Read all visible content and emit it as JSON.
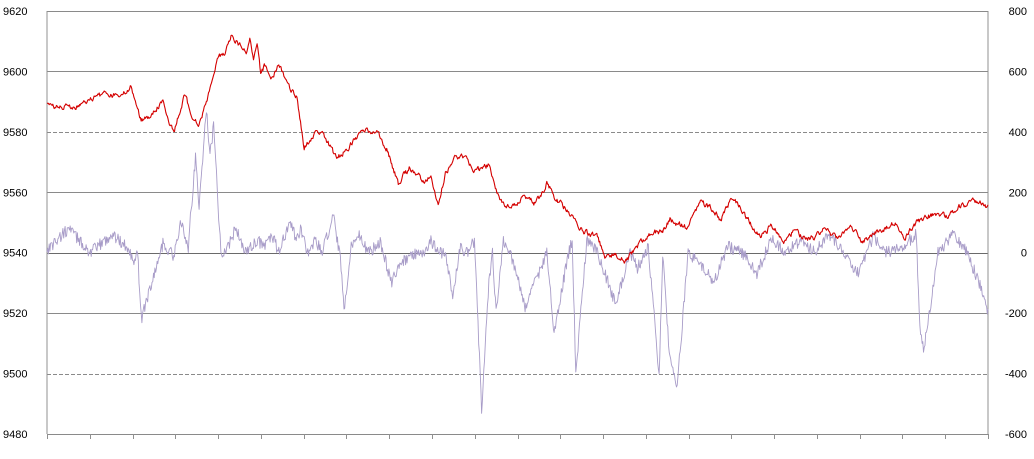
{
  "chart_data": {
    "type": "line",
    "title": "",
    "xlabel": "",
    "ylabel": "",
    "y_left": {
      "ticks": [
        9620,
        9600,
        9580,
        9560,
        9540,
        9520,
        9500,
        9480
      ],
      "ylim": [
        9480,
        9620
      ]
    },
    "y_right": {
      "ticks": [
        800,
        600,
        400,
        200,
        0,
        -200,
        -400,
        -600
      ],
      "ylim": [
        -600,
        800
      ]
    },
    "grid": true,
    "legend": "none",
    "n_points": 1300,
    "series": [
      {
        "axis": "left",
        "color": "#d40000",
        "x": [
          0,
          40,
          80,
          100,
          115,
          130,
          140,
          160,
          175,
          190,
          200,
          210,
          220,
          235,
          245,
          255,
          265,
          275,
          280,
          285,
          290,
          295,
          300,
          310,
          320,
          330,
          345,
          355,
          375,
          385,
          400,
          420,
          440,
          455,
          470,
          485,
          500,
          520,
          530,
          540,
          550,
          565,
          575,
          590,
          610,
          625,
          640,
          660,
          675,
          690,
          705,
          720,
          740,
          760,
          770,
          785,
          800,
          810,
          820,
          835,
          850,
          860,
          875,
          885,
          900,
          915,
          930,
          945,
          955,
          970,
          985,
          1000,
          1020,
          1030,
          1045,
          1060,
          1075,
          1090,
          1110,
          1125,
          1140,
          1155,
          1170,
          1185,
          1200,
          1215,
          1230,
          1245,
          1260,
          1275,
          1290,
          1299
        ],
        "values": [
          9589,
          9588,
          9593,
          9592,
          9595,
          9584,
          9585,
          9590,
          9579,
          9593,
          9584,
          9583,
          9590,
          9604,
          9606,
          9612,
          9609,
          9607,
          9611,
          9604,
          9610,
          9599,
          9602,
          9598,
          9602,
          9597,
          9591,
          9575,
          9580,
          9578,
          9571,
          9576,
          9581,
          9580,
          9574,
          9563,
          9568,
          9564,
          9565,
          9557,
          9566,
          9572,
          9572,
          9567,
          9569,
          9557,
          9555,
          9559,
          9556,
          9563,
          9557,
          9554,
          9547,
          9545,
          9539,
          9540,
          9537,
          9541,
          9543,
          9547,
          9547,
          9551,
          9549,
          9548,
          9557,
          9555,
          9551,
          9558,
          9556,
          9550,
          9545,
          9549,
          9543,
          9547,
          9545,
          9545,
          9548,
          9545,
          9548,
          9544,
          9546,
          9548,
          9550,
          9545,
          9550,
          9552,
          9553,
          9552,
          9555,
          9557,
          9556,
          9555
        ]
      },
      {
        "axis": "right",
        "color": "#a89cc8",
        "x": [
          0,
          30,
          60,
          90,
          110,
          120,
          125,
          130,
          160,
          175,
          180,
          185,
          195,
          205,
          210,
          220,
          225,
          230,
          240,
          250,
          260,
          275,
          290,
          300,
          310,
          320,
          335,
          345,
          350,
          360,
          370,
          380,
          395,
          405,
          410,
          420,
          430,
          445,
          460,
          475,
          490,
          510,
          520,
          530,
          540,
          550,
          560,
          570,
          580,
          590,
          600,
          610,
          615,
          620,
          630,
          640,
          660,
          690,
          700,
          720,
          725,
          730,
          745,
          760,
          785,
          805,
          815,
          830,
          845,
          850,
          860,
          870,
          885,
          900,
          920,
          940,
          960,
          980,
          1000,
          1020,
          1040,
          1060,
          1080,
          1100,
          1120,
          1140,
          1160,
          1180,
          1200,
          1205,
          1210,
          1230,
          1250,
          1270,
          1290,
          1299
        ],
        "values": [
          10,
          80,
          0,
          60,
          20,
          -20,
          0,
          -220,
          30,
          -10,
          40,
          100,
          20,
          320,
          150,
          480,
          320,
          420,
          0,
          20,
          80,
          0,
          40,
          20,
          60,
          0,
          100,
          40,
          80,
          0,
          40,
          0,
          120,
          -20,
          -200,
          20,
          60,
          0,
          40,
          -100,
          -30,
          0,
          0,
          40,
          0,
          0,
          -150,
          20,
          0,
          40,
          -520,
          -100,
          0,
          -200,
          40,
          0,
          -180,
          0,
          -260,
          0,
          40,
          -400,
          40,
          0,
          -170,
          0,
          -50,
          20,
          -410,
          0,
          -360,
          -440,
          0,
          -30,
          -100,
          20,
          0,
          -70,
          50,
          0,
          40,
          0,
          60,
          0,
          -70,
          50,
          0,
          20,
          60,
          -250,
          -330,
          0,
          60,
          0,
          -120,
          -200
        ]
      }
    ]
  }
}
